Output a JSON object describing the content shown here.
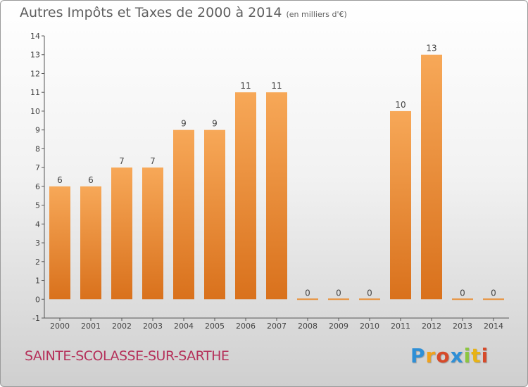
{
  "chart_data": {
    "type": "bar",
    "title": "Autres Impôts et Taxes de 2000 à 2014",
    "subtitle": "(en milliers d'€)",
    "categories": [
      "2000",
      "2001",
      "2002",
      "2003",
      "2004",
      "2005",
      "2006",
      "2007",
      "2008",
      "2009",
      "2010",
      "2011",
      "2012",
      "2013",
      "2014"
    ],
    "values": [
      6,
      6,
      7,
      7,
      9,
      9,
      11,
      11,
      0,
      0,
      0,
      10,
      13,
      0,
      0
    ],
    "ylim": [
      -1,
      14
    ],
    "yticks": [
      -1,
      0,
      1,
      2,
      3,
      4,
      5,
      6,
      7,
      8,
      9,
      10,
      11,
      12,
      13,
      14
    ],
    "grid": false,
    "bar_color": "#f08c2a",
    "bar_color_top": "#f7a858",
    "bar_color_bottom": "#d9711c"
  },
  "footer": {
    "commune": "SAINTE-SCOLASSE-SUR-SARTHE",
    "logo_text": "Proxiti"
  }
}
